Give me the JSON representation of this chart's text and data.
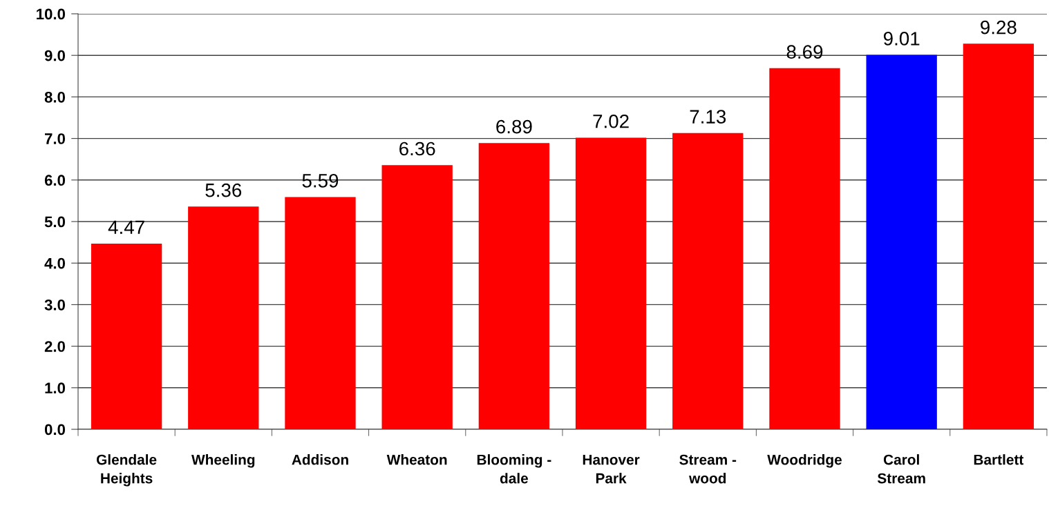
{
  "chart_data": {
    "type": "bar",
    "categories": [
      "Glendale\nHeights",
      "Wheeling",
      "Addison",
      "Wheaton",
      "Blooming -\ndale",
      "Hanover\nPark",
      "Stream -\nwood",
      "Woodridge",
      "Carol\nStream",
      "Bartlett"
    ],
    "values": [
      4.47,
      5.36,
      5.59,
      6.36,
      6.89,
      7.02,
      7.13,
      8.69,
      9.01,
      9.28
    ],
    "colors": [
      "#ff0000",
      "#ff0000",
      "#ff0000",
      "#ff0000",
      "#ff0000",
      "#ff0000",
      "#ff0000",
      "#ff0000",
      "#0000ff",
      "#ff0000"
    ],
    "ylim": [
      0,
      10
    ],
    "yticks": [
      {
        "value": 0,
        "label": "0.0"
      },
      {
        "value": 1,
        "label": "1.0"
      },
      {
        "value": 2,
        "label": "2.0"
      },
      {
        "value": 3,
        "label": "3.0"
      },
      {
        "value": 4,
        "label": "4.0"
      },
      {
        "value": 5,
        "label": "5.0"
      },
      {
        "value": 6,
        "label": "6.0"
      },
      {
        "value": 7,
        "label": "7.0"
      },
      {
        "value": 8,
        "label": "8.0"
      },
      {
        "value": 9,
        "label": "9.0"
      },
      {
        "value": 10,
        "label": "10.0"
      }
    ],
    "grid": "y",
    "data_labels": true
  }
}
